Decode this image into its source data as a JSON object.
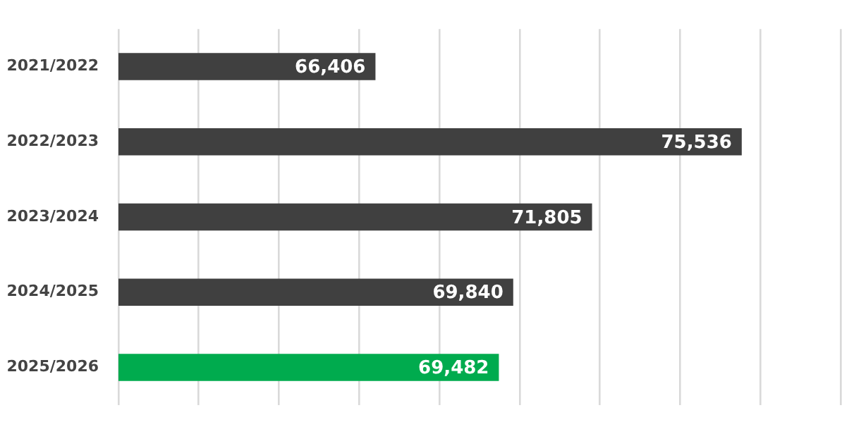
{
  "chart_data": {
    "type": "bar",
    "orientation": "horizontal",
    "categories": [
      "2021/2022",
      "2022/2023",
      "2023/2024",
      "2024/2025",
      "2025/2026"
    ],
    "values": [
      66406,
      75536,
      71805,
      69840,
      69482
    ],
    "colors": [
      "#404040",
      "#404040",
      "#404040",
      "#404040",
      "#00ab4e"
    ],
    "value_labels": [
      "66,406",
      "75,536",
      "71,805",
      "69,840",
      "69,482"
    ],
    "xlim": [
      60000,
      78000
    ],
    "xticks": [
      {
        "value": 60000,
        "label": null
      },
      {
        "value": 62000,
        "label": null
      },
      {
        "value": 64000,
        "label": null
      },
      {
        "value": 66000,
        "label": null
      },
      {
        "value": 68000,
        "label": null
      },
      {
        "value": 70000,
        "label": null
      },
      {
        "value": 72000,
        "label": null
      },
      {
        "value": 74000,
        "label": null
      },
      {
        "value": 76000,
        "label": null
      },
      {
        "value": 78000,
        "label": null
      }
    ],
    "grid": "x",
    "tick_labels": "y",
    "legend": false
  }
}
